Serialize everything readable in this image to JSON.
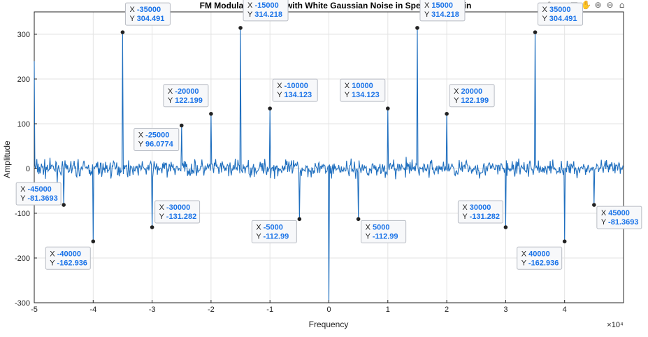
{
  "toolbar": {
    "items": [
      {
        "name": "brush-icon",
        "glyph": "✎"
      },
      {
        "name": "data-tips-icon",
        "glyph": "⌖"
      },
      {
        "name": "legend-toggle-icon",
        "glyph": "▤"
      },
      {
        "name": "pan-hand-icon",
        "glyph": "✋"
      },
      {
        "name": "zoom-in-icon",
        "glyph": "⊕"
      },
      {
        "name": "zoom-out-icon",
        "glyph": "⊖"
      },
      {
        "name": "home-icon",
        "glyph": "⌂"
      }
    ]
  },
  "chart_data": {
    "type": "line",
    "title": "FM Modulated Signal with White Gaussian Noise in Spectral Domain",
    "xlabel": "Frequency",
    "ylabel": "Amplitude",
    "x_exponent_label": "×10⁴",
    "xlim": [
      -50000,
      50000
    ],
    "ylim": [
      -300,
      350
    ],
    "x_ticks": [
      -50000,
      -40000,
      -30000,
      -20000,
      -10000,
      0,
      10000,
      20000,
      30000,
      40000
    ],
    "x_tick_labels": [
      "-5",
      "-4",
      "-3",
      "-2",
      "-1",
      "0",
      "1",
      "2",
      "3",
      "4"
    ],
    "y_ticks": [
      -300,
      -200,
      -100,
      0,
      100,
      200,
      300
    ],
    "y_tick_labels": [
      "-300",
      "-200",
      "-100",
      "0",
      "100",
      "200",
      "300"
    ],
    "grid": true,
    "line_color": "#1f6fbf",
    "noise_amplitude": 28,
    "edge_values": {
      "x_min_value": 240,
      "center_dip": -300
    },
    "data_tips": [
      {
        "x": -45000,
        "y": -81.3693,
        "x_text": "-45000",
        "y_text": "-81.3693",
        "side": "left",
        "dy": -32
      },
      {
        "x": -40000,
        "y": -162.936,
        "x_text": "-40000",
        "y_text": "-162.936",
        "side": "left",
        "dy": 8
      },
      {
        "x": -35000,
        "y": 304.491,
        "x_text": "-35000",
        "y_text": "304.491",
        "side": "right",
        "dy": -42
      },
      {
        "x": -30000,
        "y": -131.282,
        "x_text": "-30000",
        "y_text": "-131.282",
        "side": "right",
        "dy": -38
      },
      {
        "x": -25000,
        "y": 96.0774,
        "x_text": "-25000",
        "y_text": "96.0774",
        "side": "left",
        "dy": 4
      },
      {
        "x": -20000,
        "y": 122.199,
        "x_text": "-20000",
        "y_text": "122.199",
        "side": "left",
        "dy": -42
      },
      {
        "x": -15000,
        "y": 314.218,
        "x_text": "-15000",
        "y_text": "314.218",
        "side": "right",
        "dy": -42
      },
      {
        "x": -10000,
        "y": 134.123,
        "x_text": "-10000",
        "y_text": "134.123",
        "side": "right",
        "dy": -42
      },
      {
        "x": -5000,
        "y": -112.99,
        "x_text": "-5000",
        "y_text": "-112.99",
        "side": "left",
        "dy": 2
      },
      {
        "x": 5000,
        "y": -112.99,
        "x_text": "5000",
        "y_text": "-112.99",
        "side": "right",
        "dy": 2
      },
      {
        "x": 10000,
        "y": 134.123,
        "x_text": "10000",
        "y_text": "134.123",
        "side": "left",
        "dy": -42
      },
      {
        "x": 15000,
        "y": 314.218,
        "x_text": "15000",
        "y_text": "314.218",
        "side": "right",
        "dy": -42
      },
      {
        "x": 20000,
        "y": 122.199,
        "x_text": "20000",
        "y_text": "122.199",
        "side": "right",
        "dy": -42
      },
      {
        "x": 30000,
        "y": -131.282,
        "x_text": "30000",
        "y_text": "-131.282",
        "side": "left",
        "dy": -38
      },
      {
        "x": 35000,
        "y": 304.491,
        "x_text": "35000",
        "y_text": "304.491",
        "side": "right",
        "dy": -42
      },
      {
        "x": 40000,
        "y": -162.936,
        "x_text": "40000",
        "y_text": "-162.936",
        "side": "left",
        "dy": 8
      },
      {
        "x": 45000,
        "y": -81.3693,
        "x_text": "45000",
        "y_text": "-81.3693",
        "side": "right",
        "dy": 2
      }
    ]
  }
}
